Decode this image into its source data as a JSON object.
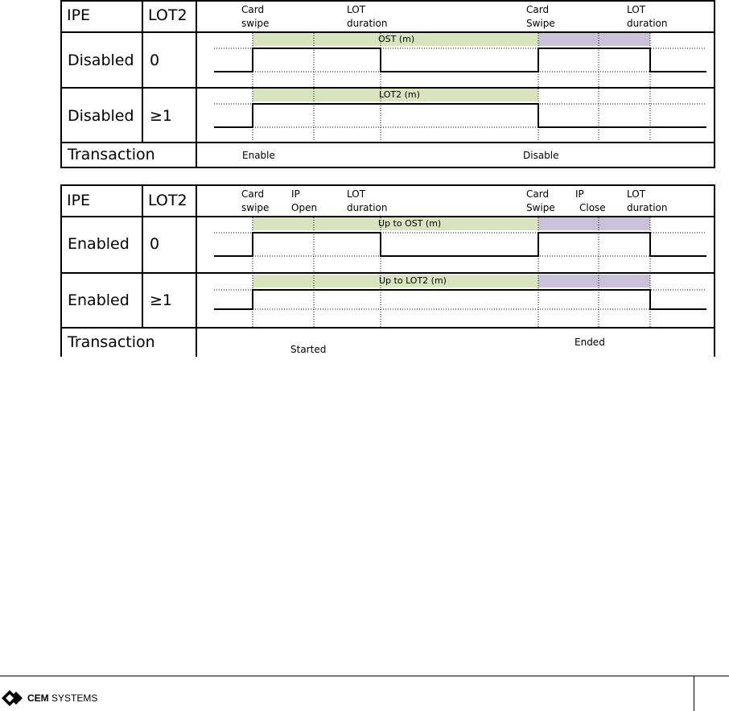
{
  "diagram1": {
    "header": {
      "col1": "IPE",
      "col2": "LOT2",
      "events": [
        {
          "line1": "Card",
          "line2": "swipe"
        },
        {
          "line1": "LOT",
          "line2": "duration"
        },
        {
          "line1": "Card",
          "line2": "Swipe"
        },
        {
          "line1": "LOT",
          "line2": "duration"
        }
      ]
    },
    "rows": [
      {
        "ipe": "Disabled",
        "lot2": "0",
        "bar_label": "OST (m)"
      },
      {
        "ipe": "Disabled",
        "lot2": "≥1",
        "bar_label": "LOT2 (m)"
      }
    ],
    "transaction": {
      "label": "Transaction",
      "start": "Enable",
      "end": "Disable"
    }
  },
  "diagram2": {
    "header": {
      "col1": "IPE",
      "col2": "LOT2",
      "events": [
        {
          "line1": "Card",
          "line2": "swipe"
        },
        {
          "line1": "IP",
          "line2": "Open"
        },
        {
          "line1": "LOT",
          "line2": "duration"
        },
        {
          "line1": "Card",
          "line2": "Swipe"
        },
        {
          "line1": "IP",
          "line2": "Close"
        },
        {
          "line1": "LOT",
          "line2": "duration"
        }
      ]
    },
    "rows": [
      {
        "ipe": "Enabled",
        "lot2": "0",
        "bar_label": "Up to OST (m)"
      },
      {
        "ipe": "Enabled",
        "lot2": "≥1",
        "bar_label": "Up to LOT2 (m)"
      }
    ],
    "transaction": {
      "label": "Transaction",
      "start": "Started",
      "end": "Ended"
    }
  },
  "colors": {
    "green": "#d7e4bd",
    "purple": "#ccc1da"
  },
  "footer": {
    "logo_bold": "CEM",
    "logo_rest": "SYSTEMS"
  }
}
